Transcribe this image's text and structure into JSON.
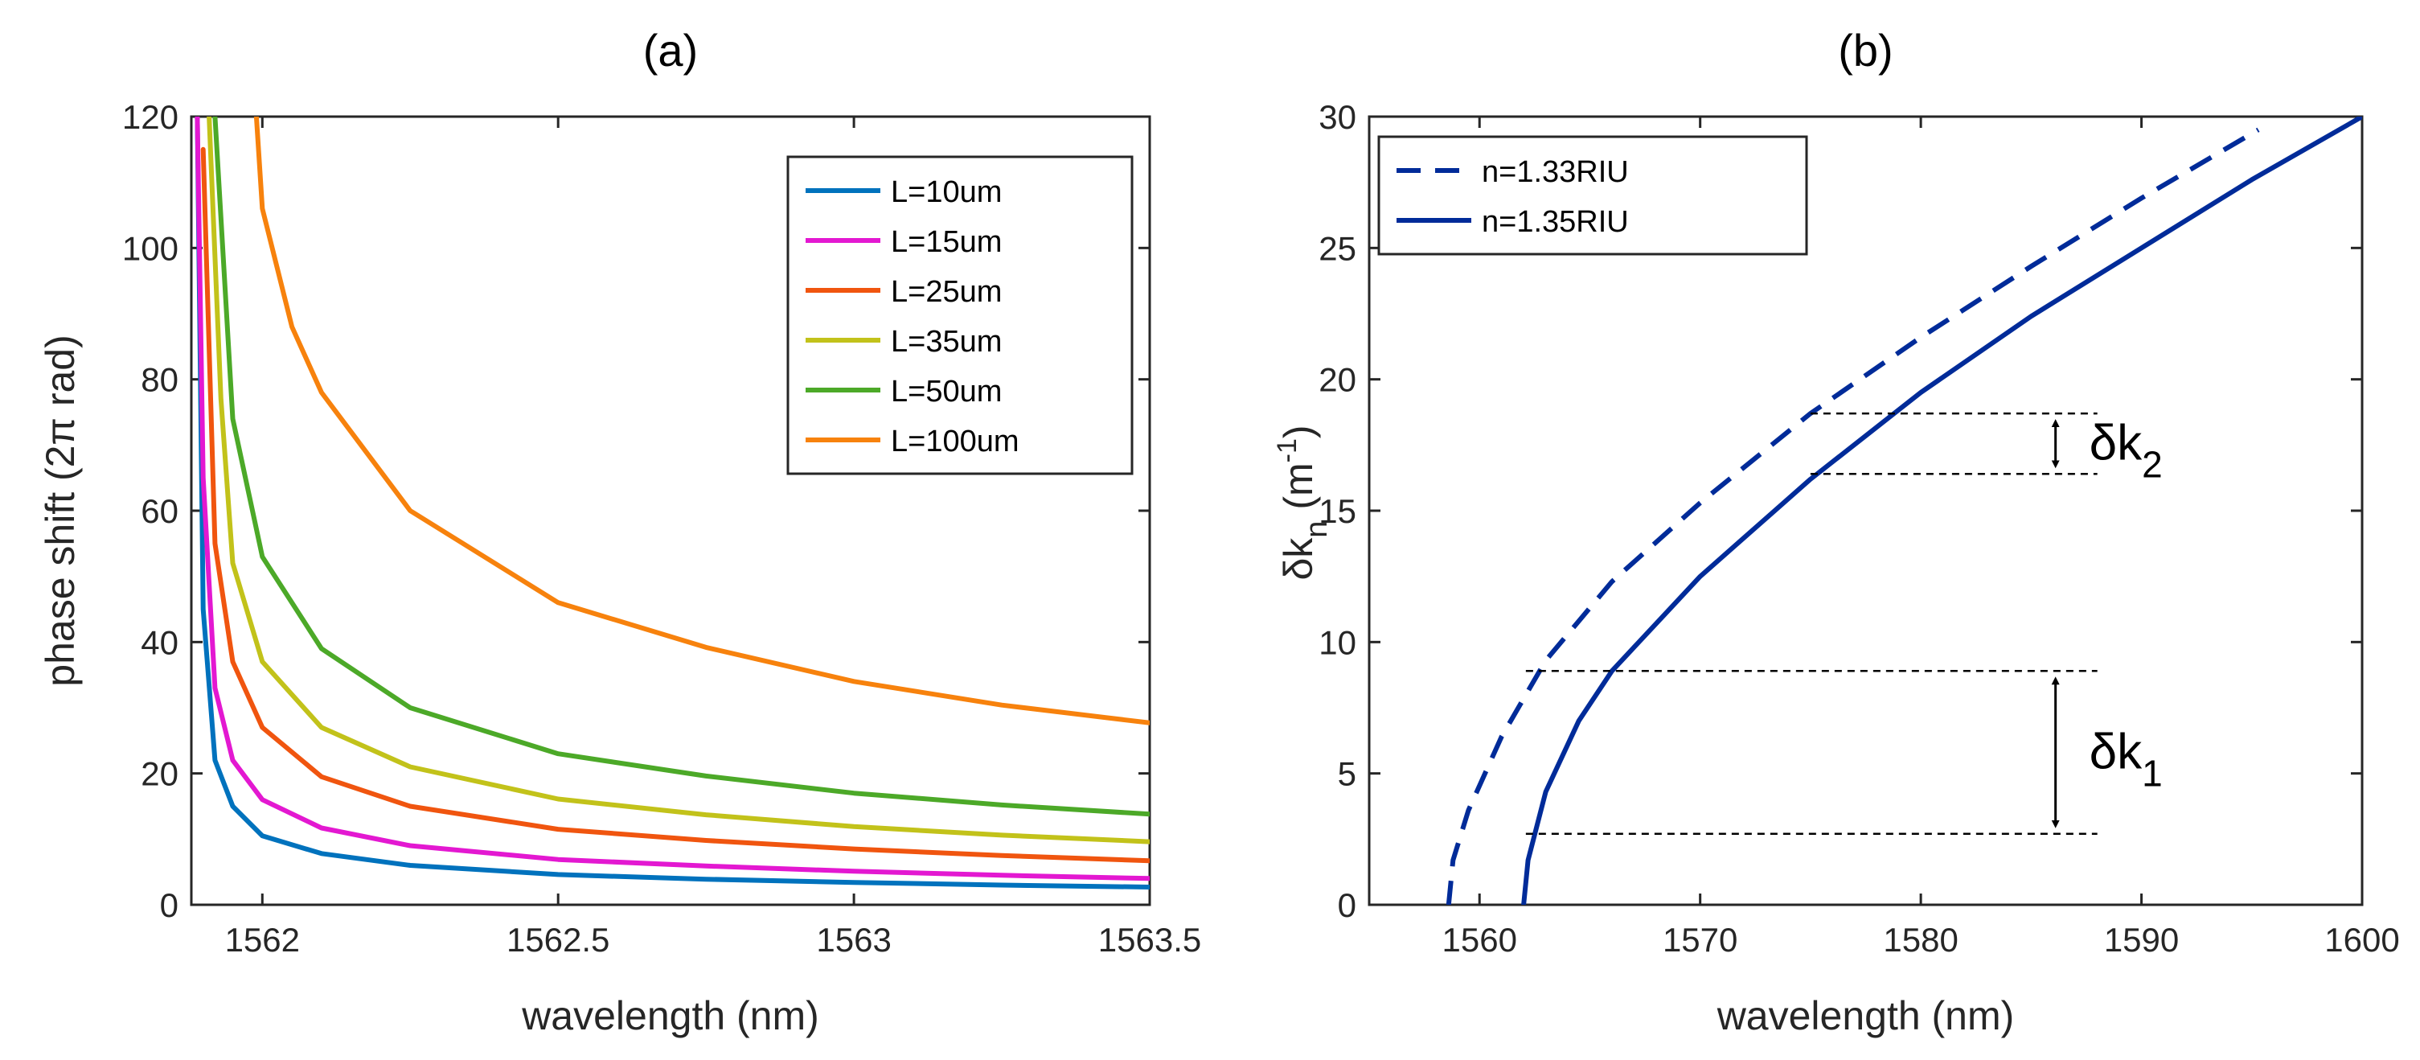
{
  "chart_data": [
    {
      "type": "line",
      "title": "(a)",
      "xlabel": "wavelength (nm)",
      "ylabel": "phase shift (2π rad)",
      "xlim": [
        1561.88,
        1563.5
      ],
      "ylim": [
        0,
        120
      ],
      "xticks": [
        "1562",
        "1562.5",
        "1563",
        "1563.5"
      ],
      "yticks": [
        "0",
        "20",
        "40",
        "60",
        "80",
        "100",
        "120"
      ],
      "grid": false,
      "legend_position": "top-right",
      "series": [
        {
          "name": "L=10um",
          "color": "#0072BD",
          "x": [
            1561.89,
            1561.9,
            1561.92,
            1561.95,
            1562.0,
            1562.1,
            1562.25,
            1562.5,
            1562.75,
            1563.0,
            1563.25,
            1563.5
          ],
          "y": [
            120,
            45,
            22,
            15,
            10.5,
            7.8,
            6.0,
            4.6,
            3.9,
            3.4,
            3.0,
            2.7
          ]
        },
        {
          "name": "L=15um",
          "color": "#E318D1",
          "x": [
            1561.89,
            1561.9,
            1561.92,
            1561.95,
            1562.0,
            1562.1,
            1562.25,
            1562.5,
            1562.75,
            1563.0,
            1563.25,
            1563.5
          ],
          "y": [
            120,
            65,
            33,
            22,
            16,
            11.7,
            9.0,
            6.9,
            5.9,
            5.1,
            4.5,
            4.0
          ]
        },
        {
          "name": "L=25um",
          "color": "#F0550F",
          "x": [
            1561.9,
            1561.92,
            1561.95,
            1562.0,
            1562.1,
            1562.25,
            1562.5,
            1562.75,
            1563.0,
            1563.25,
            1563.5
          ],
          "y": [
            115,
            55,
            37,
            27,
            19.5,
            15,
            11.5,
            9.8,
            8.5,
            7.5,
            6.7
          ]
        },
        {
          "name": "L=35um",
          "color": "#C2C21A",
          "x": [
            1561.91,
            1561.93,
            1561.95,
            1562.0,
            1562.1,
            1562.25,
            1562.5,
            1562.75,
            1563.0,
            1563.25,
            1563.5
          ],
          "y": [
            120,
            77,
            52,
            37,
            27,
            21,
            16.1,
            13.7,
            11.9,
            10.6,
            9.6
          ]
        },
        {
          "name": "L=50um",
          "color": "#4CA928",
          "x": [
            1561.92,
            1561.95,
            1562.0,
            1562.1,
            1562.25,
            1562.5,
            1562.75,
            1563.0,
            1563.25,
            1563.5
          ],
          "y": [
            120,
            74,
            53,
            39,
            30,
            23,
            19.6,
            17.0,
            15.2,
            13.8
          ]
        },
        {
          "name": "L=100um",
          "color": "#F7820D",
          "x": [
            1561.99,
            1562.0,
            1562.05,
            1562.1,
            1562.25,
            1562.5,
            1562.75,
            1563.0,
            1563.25,
            1563.5
          ],
          "y": [
            120,
            106,
            88,
            78,
            60,
            46,
            39.2,
            34.0,
            30.4,
            27.7
          ]
        }
      ]
    },
    {
      "type": "line",
      "title": "(b)",
      "xlabel": "wavelength (nm)",
      "ylabel": "δk_n (m^-1)",
      "xlim": [
        1555,
        1600
      ],
      "ylim": [
        0,
        30
      ],
      "xticks": [
        "1560",
        "1570",
        "1580",
        "1590",
        "1600"
      ],
      "yticks": [
        "0",
        "5",
        "10",
        "15",
        "20",
        "25",
        "30"
      ],
      "grid": false,
      "legend_position": "top-left",
      "series": [
        {
          "name": "n=1.33RIU",
          "color": "#002B99",
          "dash": "dashed",
          "x": [
            1558.6,
            1558.8,
            1559.5,
            1561,
            1563,
            1566,
            1570,
            1575,
            1580,
            1585,
            1590,
            1595.3
          ],
          "y": [
            0,
            1.7,
            3.6,
            6.4,
            9.3,
            12.3,
            15.3,
            18.7,
            21.6,
            24.3,
            26.9,
            29.5
          ]
        },
        {
          "name": "n=1.35RIU",
          "color": "#002B99",
          "dash": "solid",
          "x": [
            1562.0,
            1562.2,
            1563,
            1564.5,
            1566,
            1570,
            1575,
            1580,
            1585,
            1590,
            1595,
            1600
          ],
          "y": [
            0,
            1.7,
            4.3,
            7.0,
            8.9,
            12.5,
            16.2,
            19.5,
            22.4,
            25.0,
            27.6,
            30.0
          ]
        }
      ],
      "annotations": [
        {
          "text": "δk",
          "sub": "1",
          "x1": 1562.1,
          "x2": 1588,
          "y_low": 2.7,
          "y_high": 8.9
        },
        {
          "text": "δk",
          "sub": "2",
          "x1": 1575.0,
          "x2": 1588,
          "y_low": 16.4,
          "y_high": 18.7
        }
      ]
    }
  ]
}
